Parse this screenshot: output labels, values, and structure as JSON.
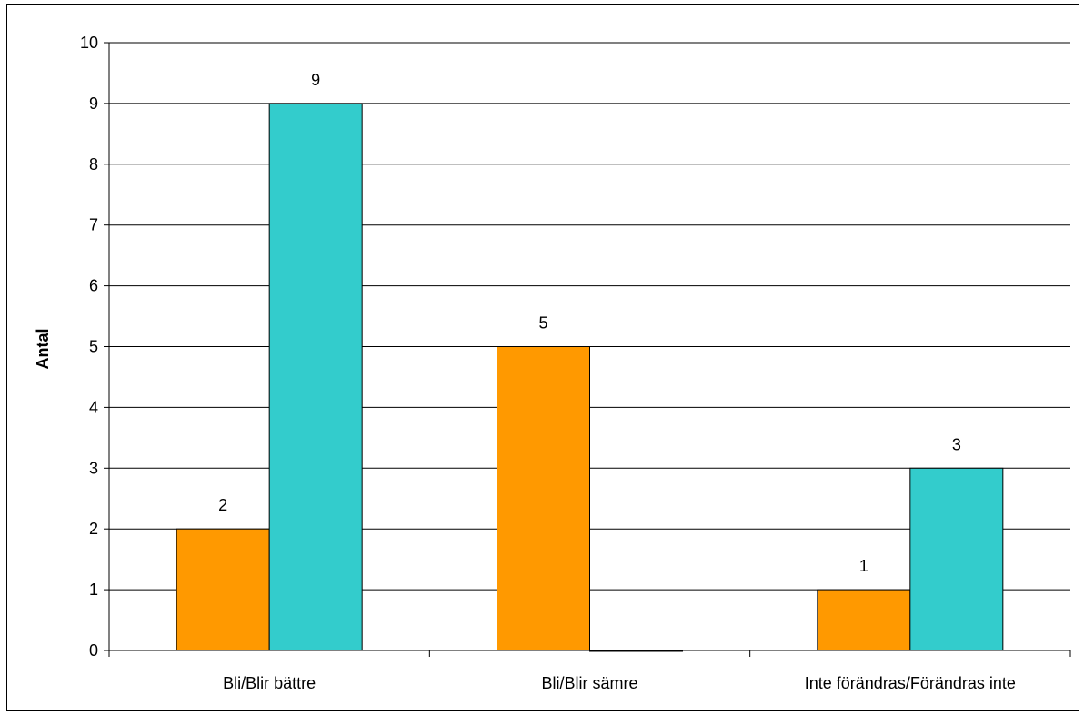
{
  "chart_data": {
    "type": "bar",
    "title": "",
    "xlabel": "",
    "ylabel": "Antal",
    "categories": [
      "Bli/Blir bättre",
      "Bli/Blir sämre",
      "Inte förändras/Förändras inte"
    ],
    "series": [
      {
        "values": [
          2,
          5,
          1
        ],
        "color": "#ff9900"
      },
      {
        "values": [
          9,
          0,
          3
        ],
        "color": "#33cccc"
      }
    ],
    "ylim": [
      0,
      10
    ],
    "yticks": [
      0,
      1,
      2,
      3,
      4,
      5,
      6,
      7,
      8,
      9,
      10
    ],
    "data_labels": [
      [
        "2",
        "5",
        "1"
      ],
      [
        "9",
        "",
        "3"
      ]
    ],
    "grid": true,
    "legend": "none"
  }
}
